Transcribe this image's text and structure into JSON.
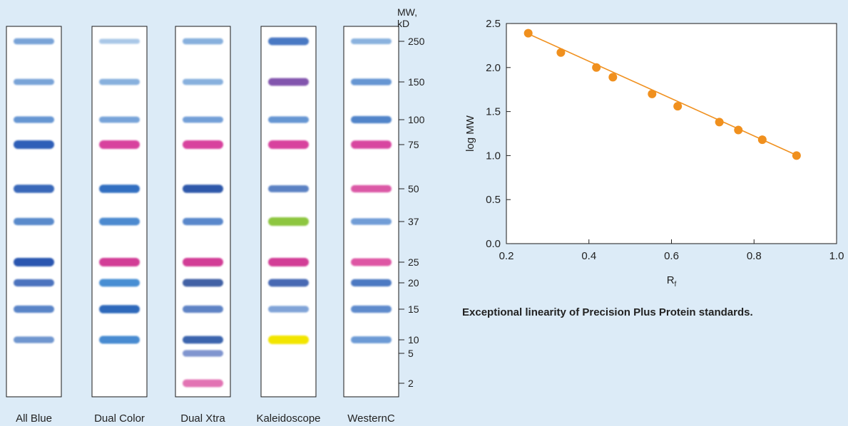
{
  "gel": {
    "mw_header": [
      "MW,",
      "kD"
    ],
    "markers": [
      {
        "label": "250",
        "kd": 250
      },
      {
        "label": "150",
        "kd": 150
      },
      {
        "label": "100",
        "kd": 100
      },
      {
        "label": "75",
        "kd": 75
      },
      {
        "label": "50",
        "kd": 50
      },
      {
        "label": "37",
        "kd": 37
      },
      {
        "label": "25",
        "kd": 25
      },
      {
        "label": "20",
        "kd": 20
      },
      {
        "label": "15",
        "kd": 15
      },
      {
        "label": "10",
        "kd": 10
      },
      {
        "label": "5",
        "kd": 5
      },
      {
        "label": "2",
        "kd": 2
      }
    ],
    "lanes": [
      {
        "name": "All Blue",
        "bands": [
          {
            "kd": 250,
            "color": "#5b8fcf",
            "intensity": 0.6
          },
          {
            "kd": 150,
            "color": "#5b8fcf",
            "intensity": 0.6
          },
          {
            "kd": 100,
            "color": "#4f86cc",
            "intensity": 0.7
          },
          {
            "kd": 75,
            "color": "#2f5fb8",
            "intensity": 1.0
          },
          {
            "kd": 50,
            "color": "#3565b8",
            "intensity": 0.95
          },
          {
            "kd": 37,
            "color": "#4a7fc6",
            "intensity": 0.8
          },
          {
            "kd": 25,
            "color": "#2a56b0",
            "intensity": 1.0
          },
          {
            "kd": 20,
            "color": "#3a66b8",
            "intensity": 0.8
          },
          {
            "kd": 15,
            "color": "#4a78c2",
            "intensity": 0.8
          },
          {
            "kd": 10,
            "color": "#5a86c8",
            "intensity": 0.7
          }
        ]
      },
      {
        "name": "Dual Color",
        "bands": [
          {
            "kd": 250,
            "color": "#8fb6e0",
            "intensity": 0.45
          },
          {
            "kd": 150,
            "color": "#6d9fd6",
            "intensity": 0.6
          },
          {
            "kd": 100,
            "color": "#5e93d2",
            "intensity": 0.65
          },
          {
            "kd": 75,
            "color": "#d8429e",
            "intensity": 1.0
          },
          {
            "kd": 50,
            "color": "#2f6cc0",
            "intensity": 0.95
          },
          {
            "kd": 37,
            "color": "#3f82cc",
            "intensity": 0.85
          },
          {
            "kd": 25,
            "color": "#d23e96",
            "intensity": 1.0
          },
          {
            "kd": 20,
            "color": "#3a86d0",
            "intensity": 0.85
          },
          {
            "kd": 15,
            "color": "#2b66ba",
            "intensity": 0.95
          },
          {
            "kd": 10,
            "color": "#3f86cf",
            "intensity": 0.9
          }
        ]
      },
      {
        "name": "Dual Xtra",
        "bands": [
          {
            "kd": 250,
            "color": "#6d9fd6",
            "intensity": 0.6
          },
          {
            "kd": 150,
            "color": "#6d9fd6",
            "intensity": 0.6
          },
          {
            "kd": 100,
            "color": "#5a8ed0",
            "intensity": 0.65
          },
          {
            "kd": 75,
            "color": "#d8429e",
            "intensity": 1.0
          },
          {
            "kd": 50,
            "color": "#2c55a8",
            "intensity": 0.95
          },
          {
            "kd": 37,
            "color": "#4a7cc6",
            "intensity": 0.8
          },
          {
            "kd": 25,
            "color": "#d23e96",
            "intensity": 1.0
          },
          {
            "kd": 20,
            "color": "#34579f",
            "intensity": 0.85
          },
          {
            "kd": 15,
            "color": "#5077c0",
            "intensity": 0.8
          },
          {
            "kd": 10,
            "color": "#2f5aa8",
            "intensity": 0.85
          },
          {
            "kd": 5,
            "color": "#6d85c8",
            "intensity": 0.7
          },
          {
            "kd": 2,
            "color": "#e06aae",
            "intensity": 0.85
          }
        ]
      },
      {
        "name": "Kaleidoscope",
        "bands": [
          {
            "kd": 250,
            "color": "#3d6fbf",
            "intensity": 0.85
          },
          {
            "kd": 150,
            "color": "#7a4aa8",
            "intensity": 0.85
          },
          {
            "kd": 100,
            "color": "#4f86cc",
            "intensity": 0.7
          },
          {
            "kd": 75,
            "color": "#d8429e",
            "intensity": 1.0
          },
          {
            "kd": 50,
            "color": "#4672bc",
            "intensity": 0.75
          },
          {
            "kd": 37,
            "color": "#8dc63f",
            "intensity": 1.0
          },
          {
            "kd": 25,
            "color": "#d23e96",
            "intensity": 1.0
          },
          {
            "kd": 20,
            "color": "#3a5fae",
            "intensity": 0.85
          },
          {
            "kd": 15,
            "color": "#6d96d2",
            "intensity": 0.7
          },
          {
            "kd": 10,
            "color": "#f2e500",
            "intensity": 1.0
          }
        ]
      },
      {
        "name": "WesternC",
        "bands": [
          {
            "kd": 250,
            "color": "#6d9fd6",
            "intensity": 0.55
          },
          {
            "kd": 150,
            "color": "#4f86cc",
            "intensity": 0.7
          },
          {
            "kd": 100,
            "color": "#3f78c4",
            "intensity": 0.8
          },
          {
            "kd": 75,
            "color": "#d8429e",
            "intensity": 0.95
          },
          {
            "kd": 50,
            "color": "#d84a9e",
            "intensity": 0.8
          },
          {
            "kd": 37,
            "color": "#5c8ed0",
            "intensity": 0.7
          },
          {
            "kd": 25,
            "color": "#dc4a9e",
            "intensity": 0.85
          },
          {
            "kd": 20,
            "color": "#3a6cbc",
            "intensity": 0.8
          },
          {
            "kd": 15,
            "color": "#4f80c8",
            "intensity": 0.8
          },
          {
            "kd": 10,
            "color": "#5a8ed0",
            "intensity": 0.75
          }
        ]
      }
    ]
  },
  "chart_data": {
    "type": "scatter",
    "xlabel": "R",
    "xlabel_subscript": "f",
    "ylabel": "log MW",
    "xlim": [
      0.2,
      1.0
    ],
    "ylim": [
      0.0,
      2.5
    ],
    "xticks": [
      "0.2",
      "0.4",
      "0.6",
      "0.8",
      "1.0"
    ],
    "yticks": [
      "0.0",
      "0.5",
      "1.0",
      "1.5",
      "2.0",
      "2.5"
    ],
    "x": [
      0.253,
      0.332,
      0.418,
      0.458,
      0.553,
      0.615,
      0.716,
      0.762,
      0.82,
      0.903
    ],
    "y": [
      2.39,
      2.17,
      2.0,
      1.89,
      1.7,
      1.56,
      1.38,
      1.29,
      1.18,
      1.0
    ],
    "trendline": {
      "x": [
        0.245,
        0.905
      ],
      "y": [
        2.4,
        1.0
      ]
    },
    "colors": {
      "point": "#f0901e",
      "line": "#f0901e"
    },
    "grid": false
  },
  "caption": "Exceptional linearity of Precision Plus Protein standards."
}
